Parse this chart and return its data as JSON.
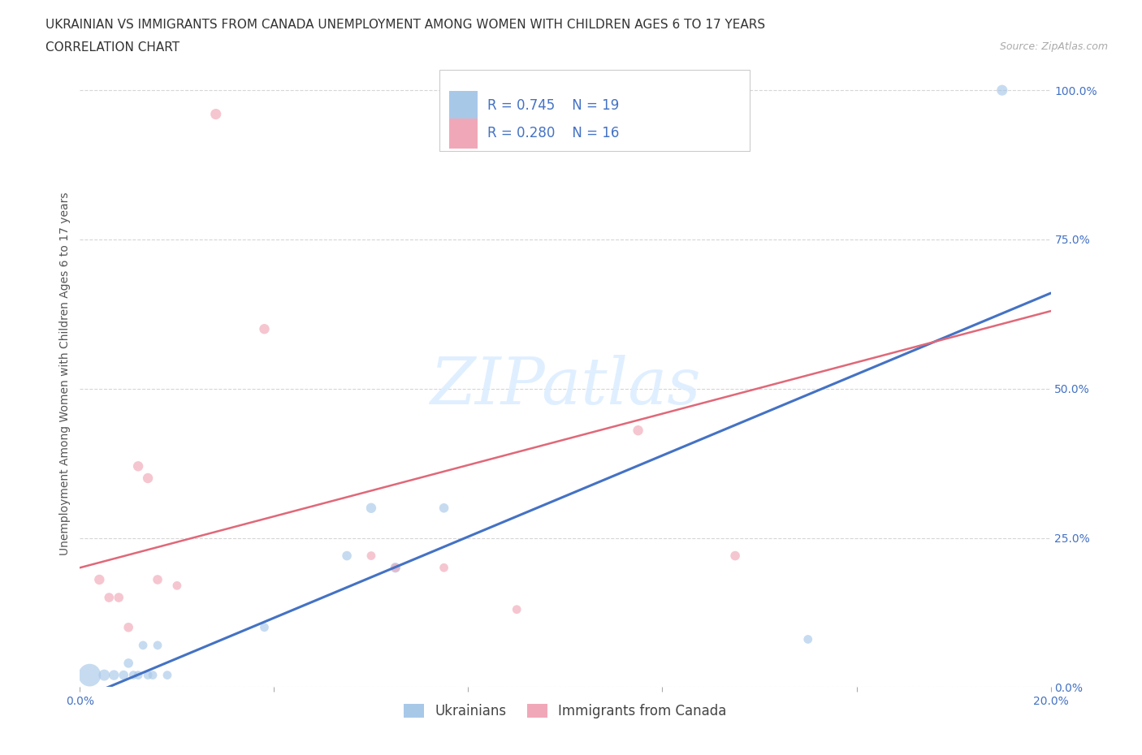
{
  "title_line1": "UKRAINIAN VS IMMIGRANTS FROM CANADA UNEMPLOYMENT AMONG WOMEN WITH CHILDREN AGES 6 TO 17 YEARS",
  "title_line2": "CORRELATION CHART",
  "source": "Source: ZipAtlas.com",
  "ylabel": "Unemployment Among Women with Children Ages 6 to 17 years",
  "xlim": [
    0.0,
    0.2
  ],
  "ylim": [
    0.0,
    1.05
  ],
  "yticks": [
    0.0,
    0.25,
    0.5,
    0.75,
    1.0
  ],
  "ytick_labels": [
    "0.0%",
    "25.0%",
    "50.0%",
    "75.0%",
    "100.0%"
  ],
  "xticks": [
    0.0,
    0.04,
    0.08,
    0.12,
    0.16,
    0.2
  ],
  "xtick_labels": [
    "0.0%",
    "",
    "",
    "",
    "",
    "20.0%"
  ],
  "blue_color": "#a8c8e8",
  "pink_color": "#f0a8b8",
  "blue_line_color": "#4472c4",
  "pink_line_color": "#e06878",
  "grid_color": "#cccccc",
  "background_color": "#ffffff",
  "legend_r_blue": "R = 0.745",
  "legend_n_blue": "N = 19",
  "legend_r_pink": "R = 0.280",
  "legend_n_pink": "N = 16",
  "blue_scatter_x": [
    0.002,
    0.005,
    0.007,
    0.009,
    0.01,
    0.011,
    0.012,
    0.013,
    0.014,
    0.015,
    0.016,
    0.018,
    0.038,
    0.055,
    0.06,
    0.065,
    0.075,
    0.15,
    0.19
  ],
  "blue_scatter_y": [
    0.02,
    0.02,
    0.02,
    0.02,
    0.04,
    0.02,
    0.02,
    0.07,
    0.02,
    0.02,
    0.07,
    0.02,
    0.1,
    0.22,
    0.3,
    0.2,
    0.3,
    0.08,
    1.0
  ],
  "blue_scatter_size": [
    400,
    100,
    80,
    70,
    70,
    60,
    60,
    60,
    60,
    60,
    60,
    60,
    60,
    70,
    80,
    80,
    70,
    60,
    90
  ],
  "pink_scatter_x": [
    0.004,
    0.006,
    0.008,
    0.01,
    0.012,
    0.014,
    0.016,
    0.02,
    0.028,
    0.038,
    0.06,
    0.065,
    0.075,
    0.09,
    0.115,
    0.135
  ],
  "pink_scatter_y": [
    0.18,
    0.15,
    0.15,
    0.1,
    0.37,
    0.35,
    0.18,
    0.17,
    0.96,
    0.6,
    0.22,
    0.2,
    0.2,
    0.13,
    0.43,
    0.22
  ],
  "pink_scatter_size": [
    80,
    70,
    70,
    70,
    80,
    80,
    70,
    60,
    90,
    80,
    60,
    60,
    60,
    60,
    80,
    70
  ],
  "blue_line_x0": 0.0,
  "blue_line_y0": -0.02,
  "blue_line_x1": 0.2,
  "blue_line_y1": 0.66,
  "pink_line_x0": 0.0,
  "pink_line_y0": 0.2,
  "pink_line_x1": 0.2,
  "pink_line_y1": 0.63,
  "title_fontsize": 11,
  "axis_label_fontsize": 10,
  "tick_fontsize": 10,
  "legend_fontsize": 12
}
